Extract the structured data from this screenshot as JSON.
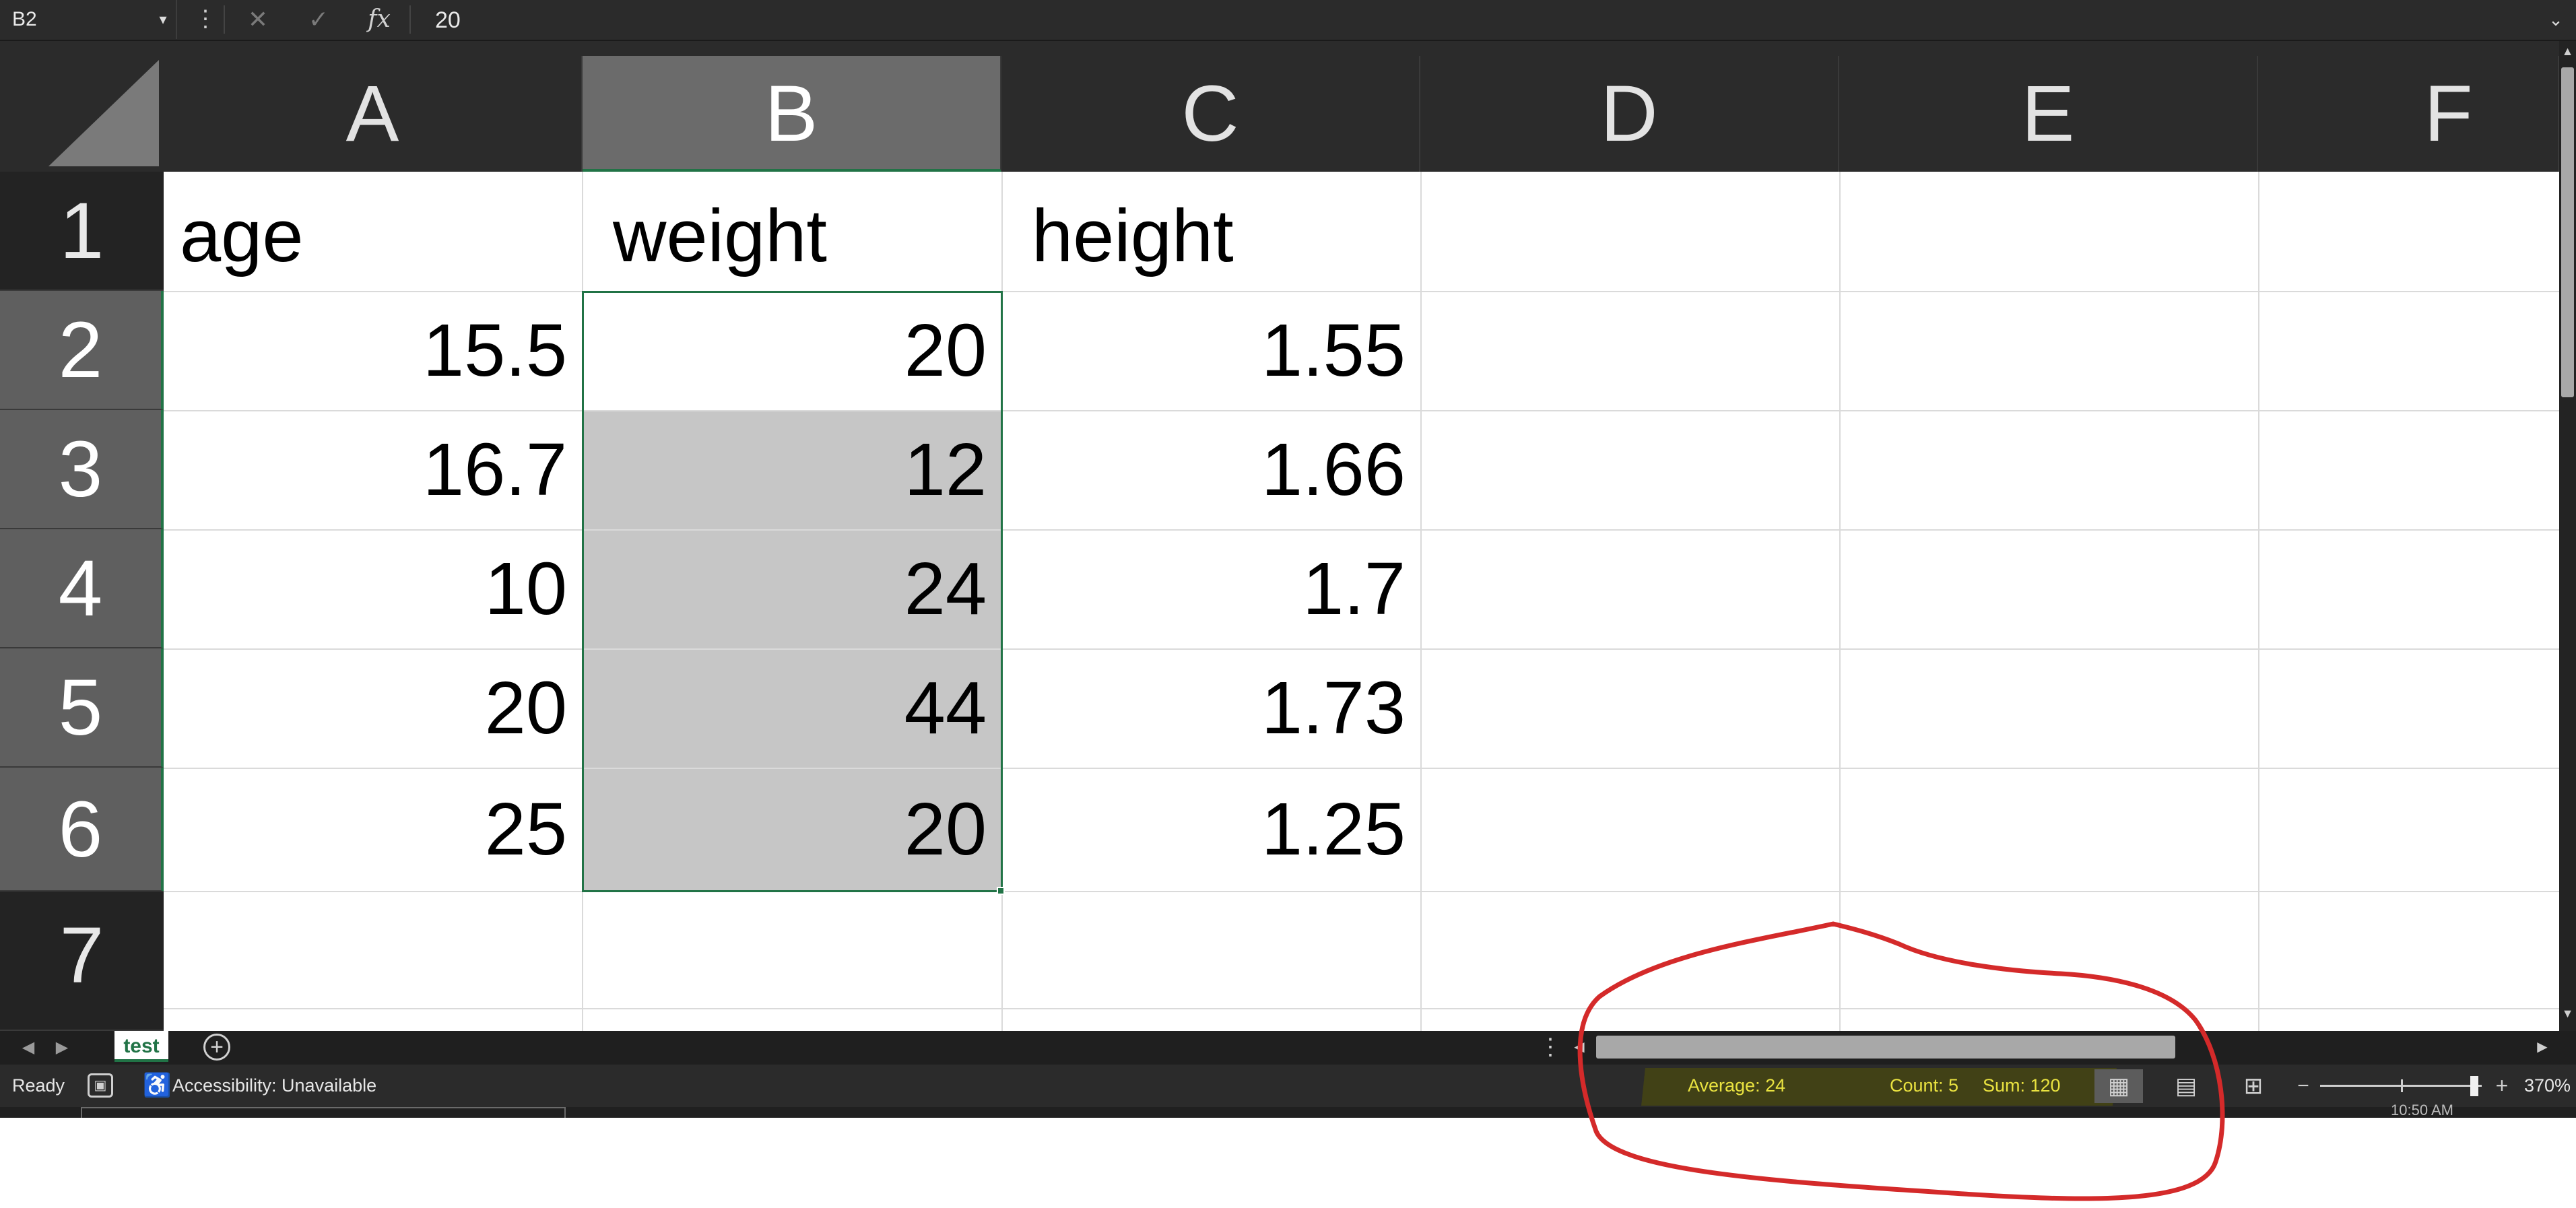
{
  "formula_bar": {
    "name_box": "B2",
    "name_box_arrow": "▾",
    "more": "⋮",
    "cancel_glyph": "✕",
    "enter_glyph": "✓",
    "fx": "fx",
    "value": "20",
    "expand": "⌄"
  },
  "columns": [
    "A",
    "B",
    "C",
    "D",
    "E",
    "F"
  ],
  "rows": [
    "1",
    "2",
    "3",
    "4",
    "5",
    "6",
    "7"
  ],
  "cells": {
    "A1": "age",
    "B1": "weight",
    "C1": "height",
    "A2": "15.5",
    "B2": "20",
    "C2": "1.55",
    "A3": "16.7",
    "B3": "12",
    "C3": "1.66",
    "A4": "10",
    "B4": "24",
    "C4": "1.7",
    "A5": "20",
    "B5": "44",
    "C5": "1.73",
    "A6": "25",
    "B6": "20",
    "C6": "1.25"
  },
  "sheet_tabs": {
    "prev": "◀",
    "next": "▶",
    "active": "test",
    "add": "+",
    "more": "⋮"
  },
  "scroll": {
    "left": "◀",
    "right": "▶",
    "up": "▲",
    "down": "▼"
  },
  "status_bar": {
    "ready": "Ready",
    "macro_glyph": "▣",
    "accessibility_glyph": "♿",
    "accessibility": "Accessibility: Unavailable",
    "average": "Average: 24",
    "count": "Count: 5",
    "sum": "Sum: 120",
    "view_normal_glyph": "▦",
    "view_layout_glyph": "▤",
    "view_break_glyph": "⊞",
    "zoom_minus": "−",
    "zoom_plus": "+",
    "zoom": "370%"
  },
  "taskbar": {
    "clock": "10:50 AM"
  },
  "colors": {
    "selection": "#217346",
    "annotation": "#d42a2a",
    "status_highlight": "#e9e240"
  }
}
